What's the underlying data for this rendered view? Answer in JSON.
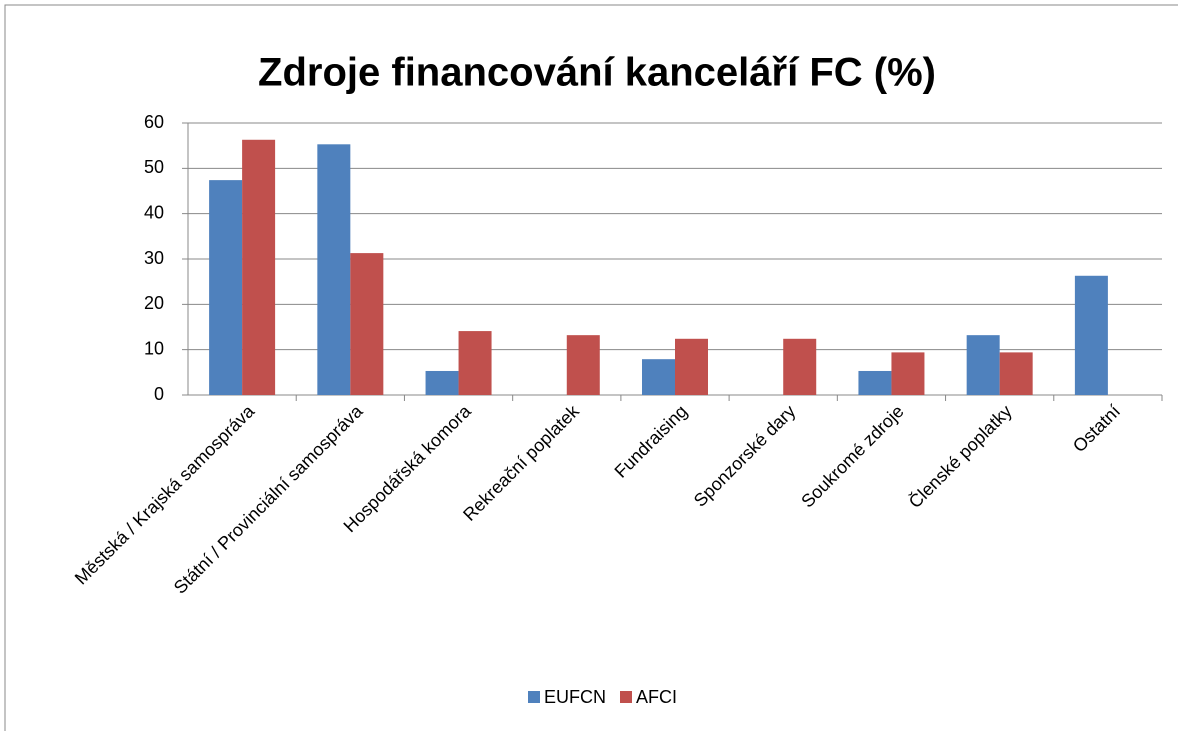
{
  "chart_data": {
    "type": "bar",
    "title": "Zdroje financování kanceláří FC (%)",
    "categories": [
      "Městská / Krajská samospráva",
      "Státní / Provinciální samospráva",
      "Hospodářská komora",
      "Rekreační poplatek",
      "Fundraising",
      "Sponzorské dary",
      "Soukromé zdroje",
      "Členské poplatky",
      "Ostatní"
    ],
    "series": [
      {
        "name": "EUFCN",
        "color": "#4f81bd",
        "values": [
          47.4,
          55.3,
          5.3,
          0,
          7.9,
          0,
          5.3,
          13.2,
          26.3
        ]
      },
      {
        "name": "AFCI",
        "color": "#c0504d",
        "values": [
          56.3,
          31.3,
          14.1,
          13.2,
          12.4,
          12.4,
          9.4,
          9.4,
          0
        ]
      }
    ],
    "ylim": [
      0,
      60
    ],
    "yticks": [
      0,
      10,
      20,
      30,
      40,
      50,
      60
    ],
    "grid": true,
    "legend": "bottom"
  }
}
